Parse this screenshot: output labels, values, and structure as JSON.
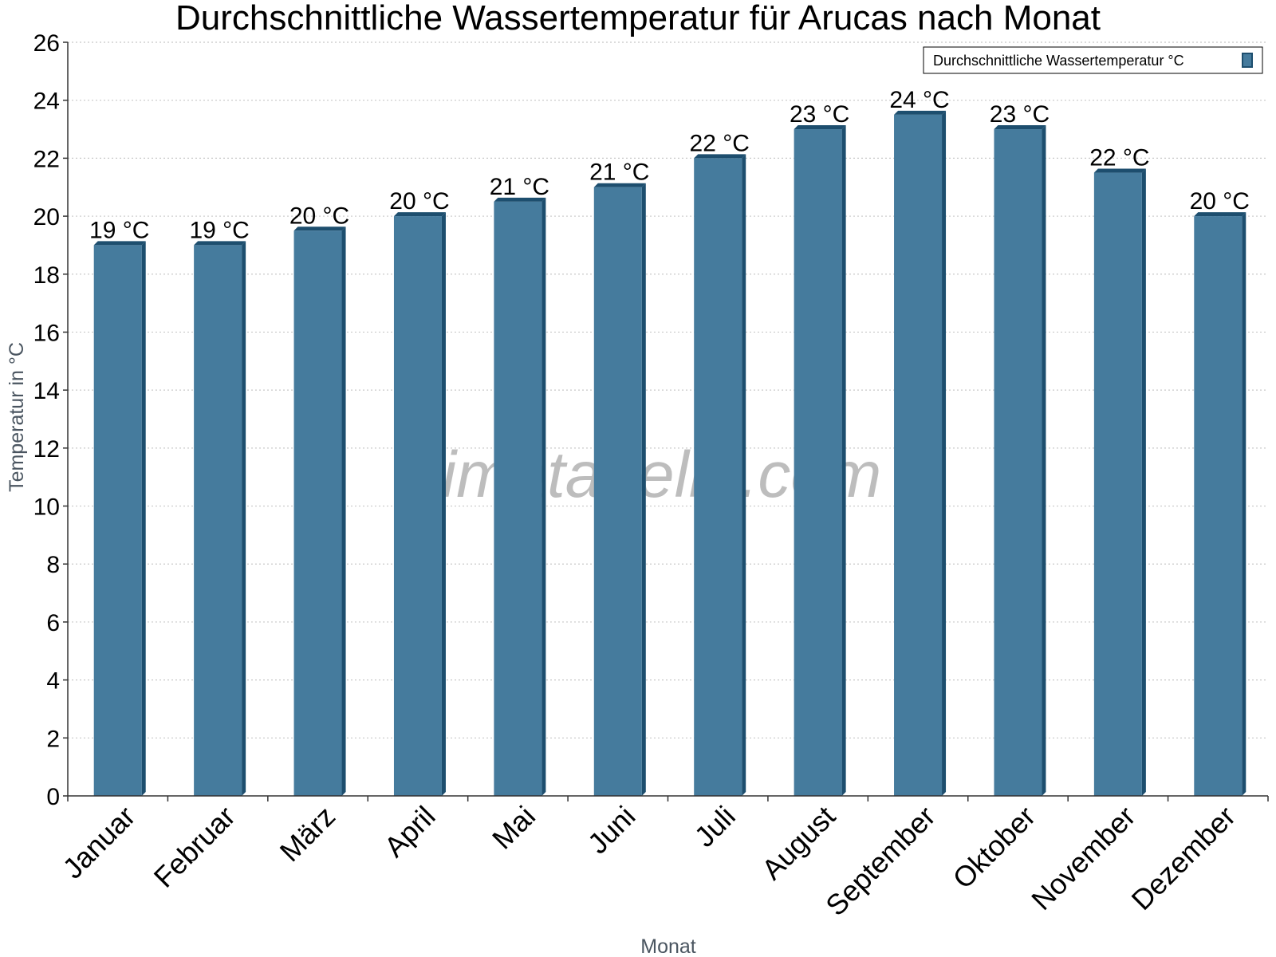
{
  "title": "Durchschnittliche Wassertemperatur für Arucas nach Monat",
  "watermark": "klimatabelle.com",
  "colors": {
    "bar_face": "#457b9d",
    "bar_side": "#1d4e6e",
    "grid": "#c8c8c8",
    "axis": "#333333"
  },
  "chart_data": {
    "type": "bar",
    "xlabel": "Monat",
    "ylabel": "Temperatur in °C",
    "ylim": [
      0,
      26
    ],
    "yticks": [
      0,
      2,
      4,
      6,
      8,
      10,
      12,
      14,
      16,
      18,
      20,
      22,
      24,
      26
    ],
    "grid": "horizontal dotted",
    "legend_position": "top-right",
    "categories": [
      "Januar",
      "Februar",
      "März",
      "April",
      "Mai",
      "Juni",
      "Juli",
      "August",
      "September",
      "Oktober",
      "November",
      "Dezember"
    ],
    "series": [
      {
        "name": "Durchschnittliche Wassertemperatur °C",
        "values": [
          19,
          19,
          19.5,
          20,
          20.5,
          21,
          22,
          23,
          23.5,
          23,
          21.5,
          20
        ],
        "labels": [
          "19 °C",
          "19 °C",
          "20 °C",
          "20 °C",
          "21 °C",
          "21 °C",
          "22 °C",
          "23 °C",
          "24 °C",
          "23 °C",
          "22 °C",
          "20 °C"
        ]
      }
    ]
  }
}
